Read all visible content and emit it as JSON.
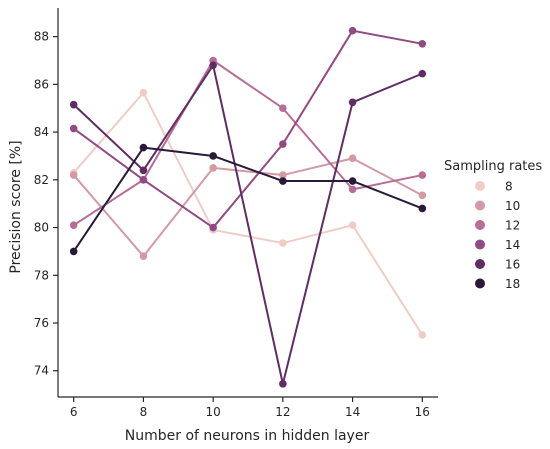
{
  "chart_data": {
    "type": "line",
    "title": "",
    "xlabel": "Number of neurons in hidden layer",
    "ylabel": "Precision score [%]",
    "x": [
      6,
      8,
      10,
      12,
      14,
      16
    ],
    "xlim": [
      5.55,
      16.45
    ],
    "ylim": [
      72.9,
      89.2
    ],
    "xticks": [
      "6",
      "8",
      "10",
      "12",
      "14",
      "16"
    ],
    "yticks": [
      "74",
      "76",
      "78",
      "80",
      "82",
      "84",
      "86",
      "88"
    ],
    "grid": false,
    "legend": {
      "title": "Sampling rates",
      "placement": "right"
    },
    "series": [
      {
        "name": "8",
        "color": "#efcdc6",
        "values": [
          82.3,
          85.65,
          79.9,
          79.35,
          80.1,
          75.5
        ]
      },
      {
        "name": "10",
        "color": "#d29aa5",
        "values": [
          82.2,
          78.8,
          82.5,
          82.2,
          82.9,
          81.35
        ]
      },
      {
        "name": "12",
        "color": "#b66d96",
        "values": [
          80.1,
          82.0,
          87.0,
          85.0,
          81.6,
          82.2
        ]
      },
      {
        "name": "14",
        "color": "#914b83",
        "values": [
          84.15,
          82.0,
          80.0,
          83.5,
          88.25,
          87.7
        ]
      },
      {
        "name": "16",
        "color": "#5e2d64",
        "values": [
          85.15,
          82.4,
          86.8,
          73.45,
          85.25,
          86.45
        ]
      },
      {
        "name": "18",
        "color": "#2a1a3a",
        "values": [
          79.0,
          83.35,
          83.0,
          81.95,
          81.95,
          80.8
        ]
      }
    ]
  }
}
